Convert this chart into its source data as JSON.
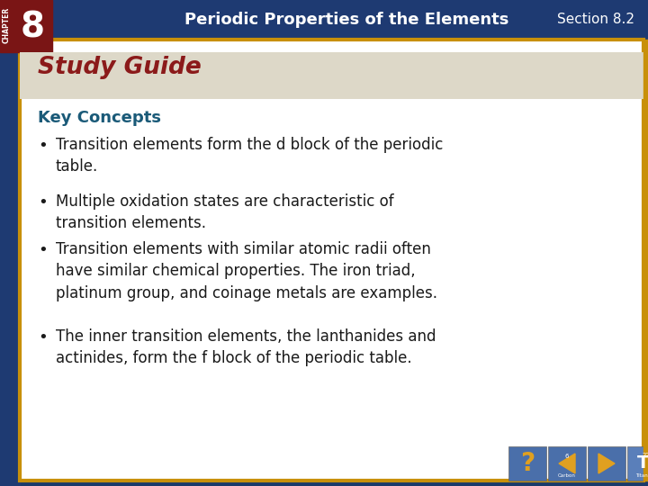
{
  "title_bar_text": "Periodic Properties of the Elements",
  "section_text": "Section 8.2",
  "chapter_num": "8",
  "chapter_label": "CHAPTER",
  "study_guide_text": "Study Guide",
  "key_concepts_text": "Key Concepts",
  "bullets": [
    "Transition elements form the d block of the periodic\ntable.",
    "Multiple oxidation states are characteristic of\ntransition elements.",
    "Transition elements with similar atomic radii often\nhave similar chemical properties. The iron triad,\nplatinum group, and coinage metals are examples.",
    "The inner transition elements, the lanthanides and\nactinides, form the f block of the periodic table."
  ],
  "bg_dark_blue": "#1a3a6b",
  "bg_title_blue": "#1e3a72",
  "gold_border": "#c8900a",
  "white": "#ffffff",
  "dark_red": "#7a1515",
  "study_guide_red": "#8b1a1a",
  "study_guide_bg": "#e8e0d0",
  "teal_blue": "#1a5a78",
  "body_text_color": "#1a1a1a",
  "nav_blue": "#4a6faa",
  "nav_gold": "#e0a020",
  "left_bar_blue": "#1e3a72",
  "figsize": [
    7.2,
    5.4
  ],
  "dpi": 100
}
